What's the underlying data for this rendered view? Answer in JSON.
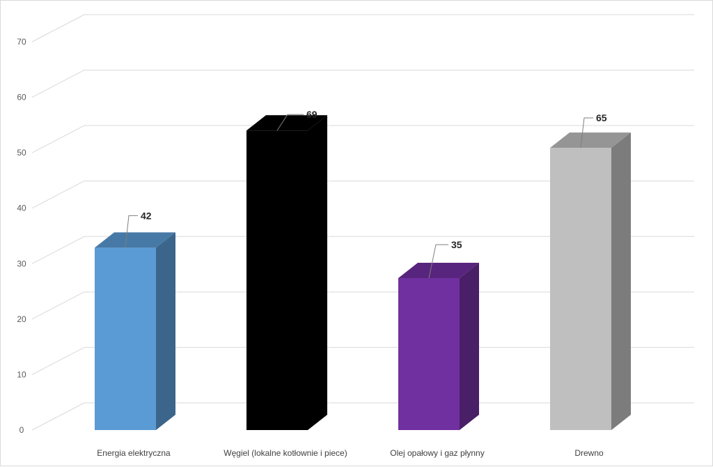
{
  "chart_data": {
    "type": "bar",
    "style": "3d-column",
    "categories": [
      "Energia elektryczna",
      "Węgiel (lokalne kotłownie i piece)",
      "Olej opałowy i gaz płynny",
      "Drewno"
    ],
    "values": [
      42,
      69,
      35,
      65
    ],
    "data_labels": [
      "42",
      "69",
      "35",
      "65"
    ],
    "colors": [
      "#5b9bd5",
      "#000000",
      "#7030a0",
      "#bfbfbf"
    ],
    "ylim": [
      0,
      70
    ],
    "yticks": [
      "0",
      "10",
      "20",
      "30",
      "40",
      "50",
      "60",
      "70"
    ],
    "grid": true,
    "legend": "none",
    "title": "",
    "xlabel": "",
    "ylabel": ""
  }
}
